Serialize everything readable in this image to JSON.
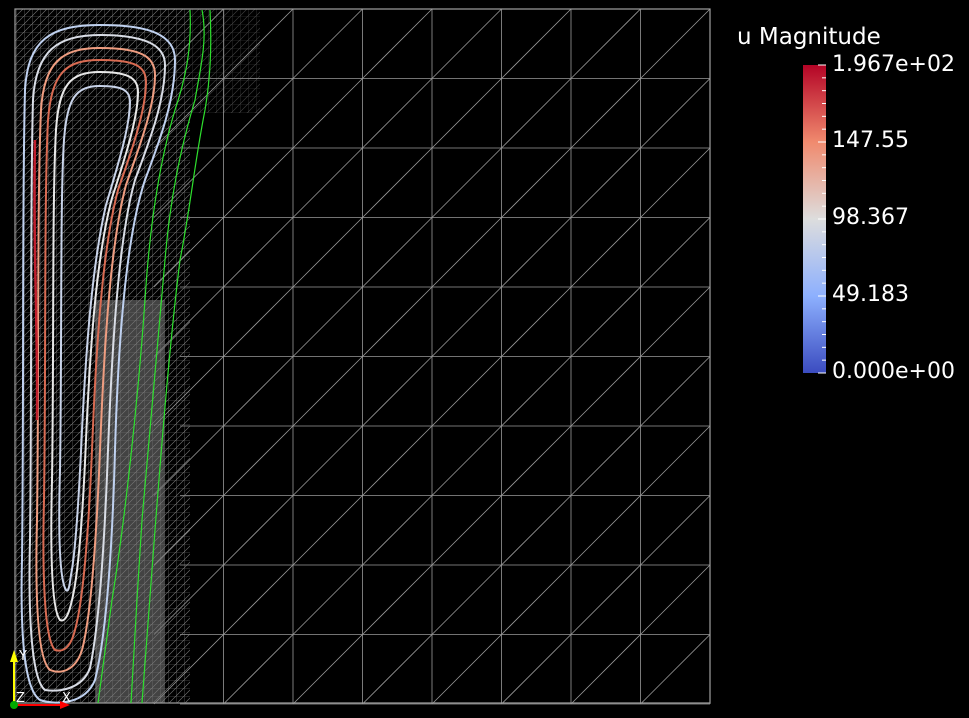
{
  "legend": {
    "title": "u Magnitude",
    "ticks": [
      "1.967e+02",
      "147.55",
      "98.367",
      "49.183",
      "0.000e+00"
    ],
    "range": [
      0,
      196.7
    ],
    "colormap": [
      "#b40426",
      "#f08a6e",
      "#dddddd",
      "#8db0fe",
      "#3b4cc0"
    ]
  },
  "orientation": {
    "y_label": "Y",
    "z_label": "Z",
    "x_label": "X",
    "colors": {
      "y": "#ffff00",
      "z": "#00ff00",
      "x": "#ff0000"
    }
  },
  "colors": {
    "background": "#000000",
    "mesh": "#9a9a9a",
    "interface": "#2ee02e"
  }
}
